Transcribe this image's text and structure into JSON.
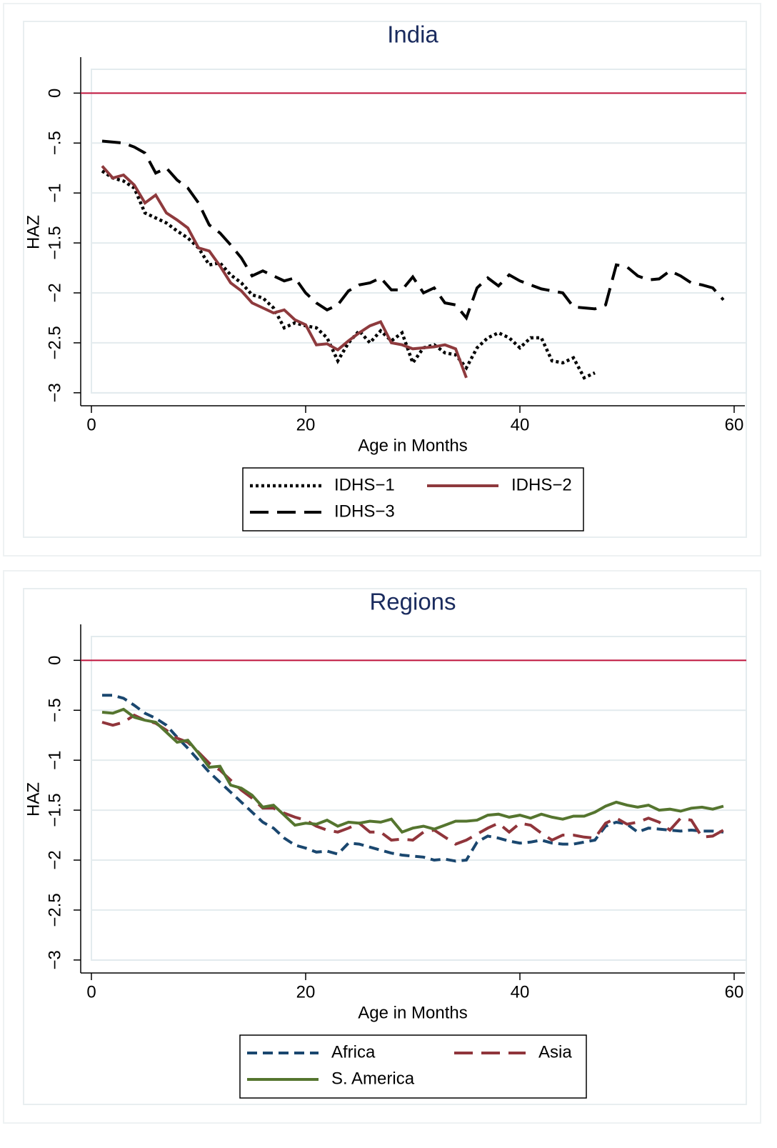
{
  "chart_data": [
    {
      "type": "line",
      "title": "India",
      "x_label": "Age in Months",
      "y_label": "HAZ",
      "x": [
        1,
        2,
        3,
        4,
        5,
        6,
        7,
        8,
        9,
        10,
        11,
        12,
        13,
        14,
        15,
        16,
        17,
        18,
        19,
        20,
        21,
        22,
        23,
        24,
        25,
        26,
        27,
        28,
        29,
        30,
        31,
        32,
        33,
        34,
        35,
        36,
        37,
        38,
        39,
        40,
        41,
        42,
        43,
        44,
        45,
        46,
        47,
        48,
        49,
        50,
        51,
        52,
        53,
        54,
        55,
        56,
        57,
        58,
        59
      ],
      "xlim": [
        -1,
        61
      ],
      "xticks": [
        0,
        20,
        40,
        60
      ],
      "ylim": [
        -3.13,
        0.36
      ],
      "yticks": [
        0,
        {
          "value": -0.5,
          "label": "−.5"
        },
        {
          "value": -1,
          "label": "−1"
        },
        {
          "value": -1.5,
          "label": "−1.5"
        },
        {
          "value": -2,
          "label": "−2"
        },
        {
          "value": -2.5,
          "label": "−2.5"
        },
        {
          "value": -3,
          "label": "−3"
        }
      ],
      "grid": true,
      "reference_line": {
        "value": 0,
        "color": "#c0143c"
      },
      "series": [
        {
          "name": "IDHS−1",
          "color": "#000000",
          "style": "dotted",
          "values": [
            -0.78,
            -0.85,
            -0.88,
            -0.95,
            -1.2,
            -1.25,
            -1.3,
            -1.38,
            -1.45,
            -1.55,
            -1.72,
            -1.7,
            -1.82,
            -1.9,
            -2.02,
            -2.05,
            -2.15,
            -2.35,
            -2.3,
            -2.33,
            -2.35,
            -2.45,
            -2.68,
            -2.5,
            -2.38,
            -2.5,
            -2.38,
            -2.48,
            -2.4,
            -2.7,
            -2.55,
            -2.52,
            -2.6,
            -2.62,
            -2.75,
            -2.55,
            -2.45,
            -2.4,
            -2.45,
            -2.55,
            -2.45,
            -2.45,
            -2.68,
            -2.7,
            -2.65,
            -2.85,
            -2.8,
            null,
            null,
            null,
            null,
            null,
            null,
            null,
            null,
            null,
            null,
            null,
            null
          ]
        },
        {
          "name": "IDHS−2",
          "color": "#8e3a3d",
          "style": "solid",
          "values": [
            -0.73,
            -0.85,
            -0.82,
            -0.92,
            -1.1,
            -1.02,
            -1.2,
            -1.27,
            -1.35,
            -1.55,
            -1.58,
            -1.73,
            -1.9,
            -1.98,
            -2.1,
            -2.15,
            -2.2,
            -2.17,
            -2.27,
            -2.32,
            -2.52,
            -2.51,
            -2.57,
            -2.48,
            -2.4,
            -2.33,
            -2.29,
            -2.5,
            -2.52,
            -2.56,
            -2.55,
            -2.54,
            -2.52,
            -2.56,
            -2.85,
            null,
            null,
            null,
            null,
            null,
            null,
            null,
            null,
            null,
            null,
            null,
            null,
            null,
            null,
            null,
            null,
            null,
            null,
            null,
            null,
            null,
            null,
            null,
            null
          ]
        },
        {
          "name": "IDHS−3",
          "color": "#000000",
          "style": "longdash",
          "values": [
            -0.48,
            -0.49,
            -0.5,
            -0.54,
            -0.6,
            -0.8,
            -0.75,
            -0.87,
            -0.95,
            -1.1,
            -1.32,
            -1.4,
            -1.52,
            -1.65,
            -1.83,
            -1.78,
            -1.83,
            -1.88,
            -1.85,
            -2.0,
            -2.1,
            -2.17,
            -2.12,
            -1.98,
            -1.92,
            -1.9,
            -1.85,
            -1.97,
            -1.97,
            -1.84,
            -2.0,
            -1.95,
            -2.1,
            -2.12,
            -2.25,
            -1.95,
            -1.85,
            -1.93,
            -1.82,
            -1.88,
            -1.92,
            -1.96,
            -1.98,
            -2.0,
            -2.14,
            -2.15,
            -2.16,
            -2.12,
            -1.72,
            -1.74,
            -1.83,
            -1.87,
            -1.86,
            -1.78,
            -1.83,
            -1.9,
            -1.92,
            -1.95,
            -2.07
          ]
        }
      ]
    },
    {
      "type": "line",
      "title": "Regions",
      "x_label": "Age in Months",
      "y_label": "HAZ",
      "x": [
        1,
        2,
        3,
        4,
        5,
        6,
        7,
        8,
        9,
        10,
        11,
        12,
        13,
        14,
        15,
        16,
        17,
        18,
        19,
        20,
        21,
        22,
        23,
        24,
        25,
        26,
        27,
        28,
        29,
        30,
        31,
        32,
        33,
        34,
        35,
        36,
        37,
        38,
        39,
        40,
        41,
        42,
        43,
        44,
        45,
        46,
        47,
        48,
        49,
        50,
        51,
        52,
        53,
        54,
        55,
        56,
        57,
        58,
        59
      ],
      "xlim": [
        -1,
        61
      ],
      "xticks": [
        0,
        20,
        40,
        60
      ],
      "ylim": [
        -3.13,
        0.36
      ],
      "yticks": [
        0,
        {
          "value": -0.5,
          "label": "−.5"
        },
        {
          "value": -1,
          "label": "−1"
        },
        {
          "value": -1.5,
          "label": "−1.5"
        },
        {
          "value": -2,
          "label": "−2"
        },
        {
          "value": -2.5,
          "label": "−2.5"
        },
        {
          "value": -3,
          "label": "−3"
        }
      ],
      "grid": true,
      "reference_line": {
        "value": 0,
        "color": "#c0143c"
      },
      "series": [
        {
          "name": "Africa",
          "color": "#1a476f",
          "style": "dash",
          "values": [
            -0.35,
            -0.35,
            -0.38,
            -0.45,
            -0.53,
            -0.58,
            -0.65,
            -0.77,
            -0.88,
            -1.0,
            -1.12,
            -1.22,
            -1.32,
            -1.42,
            -1.52,
            -1.62,
            -1.68,
            -1.78,
            -1.85,
            -1.88,
            -1.92,
            -1.91,
            -1.94,
            -1.83,
            -1.84,
            -1.87,
            -1.9,
            -1.93,
            -1.95,
            -1.96,
            -1.97,
            -2.0,
            -1.99,
            -2.01,
            -2.0,
            -1.82,
            -1.76,
            -1.78,
            -1.81,
            -1.83,
            -1.82,
            -1.8,
            -1.83,
            -1.84,
            -1.84,
            -1.82,
            -1.8,
            -1.66,
            -1.62,
            -1.64,
            -1.72,
            -1.68,
            -1.69,
            -1.7,
            -1.71,
            -1.7,
            -1.71,
            -1.71,
            -1.72
          ]
        },
        {
          "name": "Asia",
          "color": "#90353b",
          "style": "longdash",
          "values": [
            -0.62,
            -0.65,
            -0.62,
            -0.55,
            -0.6,
            -0.63,
            -0.7,
            -0.78,
            -0.82,
            -0.92,
            -1.03,
            -1.1,
            -1.2,
            -1.3,
            -1.38,
            -1.48,
            -1.48,
            -1.53,
            -1.57,
            -1.6,
            -1.66,
            -1.7,
            -1.72,
            -1.68,
            -1.63,
            -1.72,
            -1.72,
            -1.8,
            -1.79,
            -1.8,
            -1.72,
            -1.7,
            -1.77,
            -1.84,
            -1.8,
            -1.74,
            -1.68,
            -1.63,
            -1.72,
            -1.63,
            -1.65,
            -1.73,
            -1.8,
            -1.75,
            -1.75,
            -1.77,
            -1.78,
            -1.63,
            -1.58,
            -1.64,
            -1.62,
            -1.58,
            -1.62,
            -1.7,
            -1.58,
            -1.6,
            -1.77,
            -1.76,
            -1.7
          ]
        },
        {
          "name": "S. America",
          "color": "#55752f",
          "style": "solid",
          "values": [
            -0.52,
            -0.53,
            -0.49,
            -0.57,
            -0.6,
            -0.62,
            -0.72,
            -0.82,
            -0.8,
            -0.93,
            -1.07,
            -1.06,
            -1.25,
            -1.28,
            -1.35,
            -1.47,
            -1.45,
            -1.55,
            -1.65,
            -1.63,
            -1.64,
            -1.6,
            -1.66,
            -1.62,
            -1.63,
            -1.61,
            -1.62,
            -1.59,
            -1.72,
            -1.68,
            -1.66,
            -1.69,
            -1.65,
            -1.61,
            -1.61,
            -1.6,
            -1.55,
            -1.54,
            -1.57,
            -1.55,
            -1.58,
            -1.54,
            -1.57,
            -1.59,
            -1.56,
            -1.56,
            -1.52,
            -1.46,
            -1.42,
            -1.45,
            -1.47,
            -1.45,
            -1.5,
            -1.49,
            -1.51,
            -1.48,
            -1.47,
            -1.49,
            -1.46
          ]
        }
      ]
    }
  ]
}
